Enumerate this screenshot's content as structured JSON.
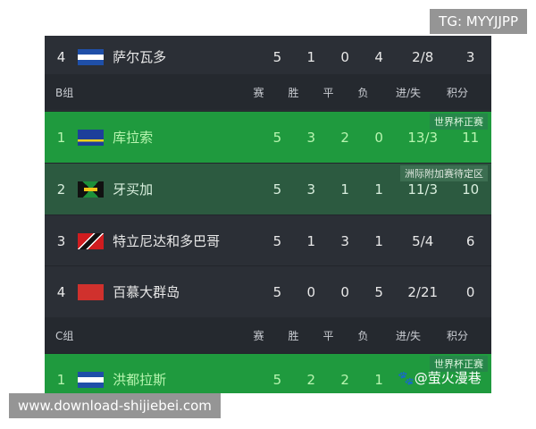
{
  "headers": {
    "group_b": "B组",
    "group_c": "C组",
    "played": "赛",
    "won": "胜",
    "draw": "平",
    "lost": "负",
    "goals": "进/失",
    "points": "积分"
  },
  "rows": [
    {
      "pos": "4",
      "name": "萨尔瓦多",
      "p": "5",
      "w": "1",
      "d": "0",
      "l": "4",
      "g": "2/8",
      "pts": "3",
      "flag": "el-salvador-flag"
    },
    {
      "pos": "1",
      "name": "库拉索",
      "p": "5",
      "w": "3",
      "d": "2",
      "l": "0",
      "g": "13/3",
      "pts": "11",
      "flag": "curacao-flag",
      "tag": "世界杯正赛"
    },
    {
      "pos": "2",
      "name": "牙买加",
      "p": "5",
      "w": "3",
      "d": "1",
      "l": "1",
      "g": "11/3",
      "pts": "10",
      "flag": "jamaica-flag",
      "tag": "洲际附加赛待定区"
    },
    {
      "pos": "3",
      "name": "特立尼达和多巴哥",
      "p": "5",
      "w": "1",
      "d": "3",
      "l": "1",
      "g": "5/4",
      "pts": "6",
      "flag": "trinidad-flag"
    },
    {
      "pos": "4",
      "name": "百慕大群岛",
      "p": "5",
      "w": "0",
      "d": "0",
      "l": "5",
      "g": "2/21",
      "pts": "0",
      "flag": "bermuda-flag"
    },
    {
      "pos": "1",
      "name": "洪都拉斯",
      "p": "5",
      "w": "2",
      "d": "2",
      "l": "1",
      "g": "",
      "pts": "",
      "flag": "honduras-flag",
      "tag": "世界杯正赛"
    }
  ],
  "colors": {
    "qualified": "#1f9a3e",
    "playoff": "#2c5a40",
    "row": "#2b2f36"
  },
  "watermarks": {
    "tg": "TG: MYYJJPP",
    "site": "www.download-shijiebei.com",
    "baidu": "@萤火漫巷"
  }
}
